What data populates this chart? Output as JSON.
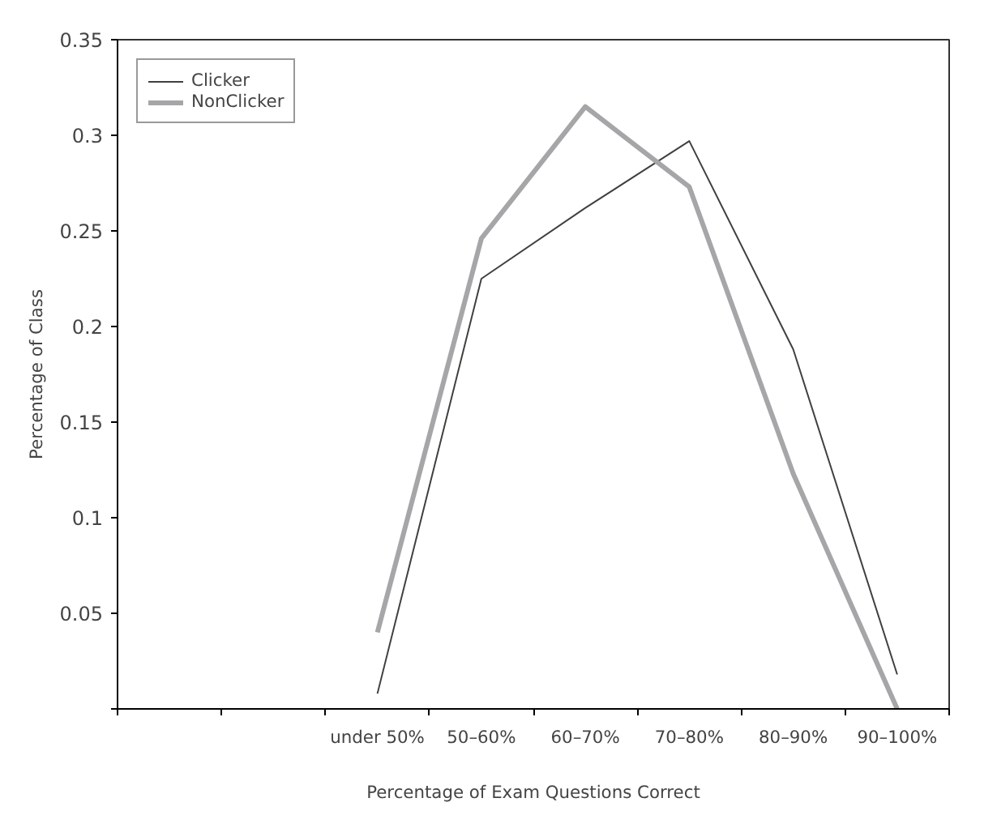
{
  "chart_data": {
    "type": "line",
    "xlabel": "Percentage of Exam Questions Correct",
    "ylabel": "Percentage of Class",
    "categories": [
      null,
      null,
      "under 50%",
      "50–60%",
      "60–70%",
      "70–80%",
      "80–90%",
      "90–100%"
    ],
    "series": [
      {
        "name": "Clicker",
        "color": "#404040",
        "values": [
          null,
          null,
          0.008,
          0.225,
          0.262,
          0.297,
          0.188,
          0.018
        ]
      },
      {
        "name": "NonClicker",
        "color": "#a6a6a8",
        "values": [
          null,
          null,
          0.04,
          0.246,
          0.315,
          0.273,
          0.123,
          0.0
        ]
      }
    ],
    "ylim": [
      0,
      0.35
    ],
    "yticks": [
      {
        "value": 0,
        "label": null
      },
      0.05,
      0.1,
      0.15,
      0.2,
      0.25,
      0.3,
      0.35
    ],
    "grid": false,
    "legend": "top left",
    "marker": "none",
    "line_style": "solid"
  }
}
